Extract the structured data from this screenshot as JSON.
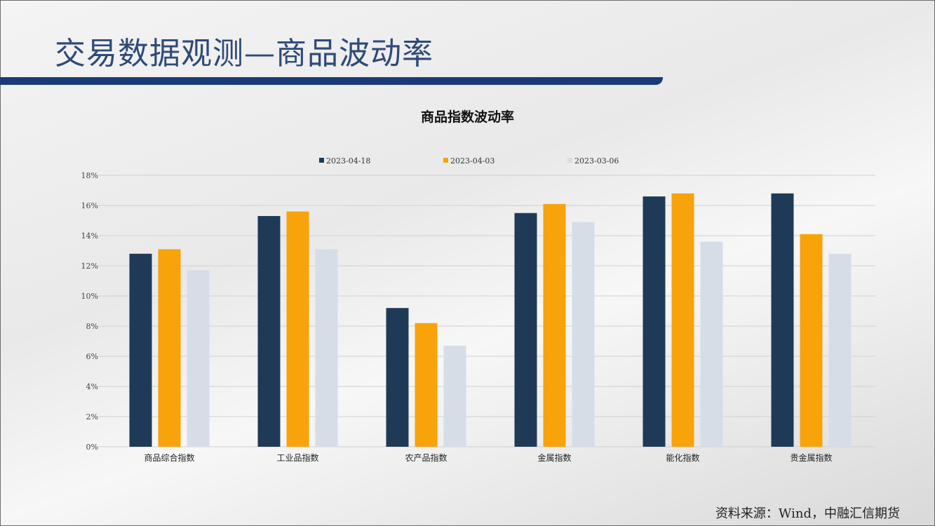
{
  "slide": {
    "title": "交易数据观测—商品波动率",
    "source": "资料来源：Wind，中融汇信期货"
  },
  "chart_data": {
    "type": "bar",
    "title": "商品指数波动率",
    "categories": [
      "商品综合指数",
      "工业品指数",
      "农产品指数",
      "金属指数",
      "能化指数",
      "贵金属指数"
    ],
    "series": [
      {
        "name": "2023-04-18",
        "color": "#1f3a56",
        "values": [
          12.8,
          15.3,
          9.2,
          15.5,
          16.6,
          16.8
        ]
      },
      {
        "name": "2023-04-03",
        "color": "#f8a30a",
        "values": [
          13.1,
          15.6,
          8.2,
          16.1,
          16.8,
          14.1
        ]
      },
      {
        "name": "2023-03-06",
        "color": "#d6dde6",
        "values": [
          11.7,
          13.1,
          6.7,
          14.9,
          13.6,
          12.8
        ]
      }
    ],
    "ylim": [
      0,
      18
    ],
    "yticks": [
      "0%",
      "2%",
      "4%",
      "6%",
      "8%",
      "10%",
      "12%",
      "14%",
      "16%",
      "18%"
    ],
    "ytick_values": [
      0,
      2,
      4,
      6,
      8,
      10,
      12,
      14,
      16,
      18
    ],
    "grid": true,
    "legend_position": "top"
  }
}
